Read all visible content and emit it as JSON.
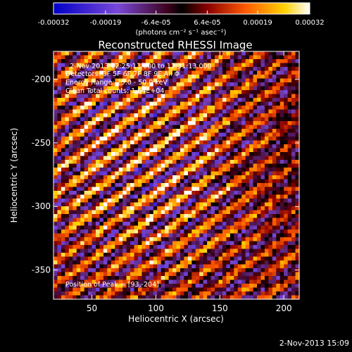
{
  "chart_data": {
    "type": "heatmap",
    "title": "Reconstructed RHESSI Image",
    "xlabel": "Heliocentric X (arcsec)",
    "ylabel": "Heliocentric Y (arcsec)",
    "xlim": [
      20,
      212
    ],
    "ylim": [
      -373,
      -178
    ],
    "x_ticks": [
      50,
      100,
      150,
      200
    ],
    "y_ticks": [
      -200,
      -250,
      -300,
      -350
    ],
    "colorbar": {
      "min": -0.00032,
      "max": 0.00032,
      "tick_values": [
        -0.00032,
        -0.00019,
        -6.4e-05,
        6.4e-05,
        0.00019,
        0.00032
      ],
      "tick_labels": [
        "-0.00032",
        "-0.00019",
        "-6.4e-05",
        "6.4e-05",
        "0.00019",
        "0.00032"
      ],
      "units_label": "(photons cm⁻² s⁻¹ asec⁻²)"
    },
    "annotations": [
      "2-Nov-2013 12:25:13.000 to 12:31:13.000",
      "Detectors: 3F 5F 6F 7F 8F 9F  All Φ",
      "Energy Range: 25.0 - 50.0 keV",
      "Clean    Total counts: 1.64E+04"
    ],
    "peak_label": "Position of Peak = [93,-204]",
    "grid": false
  },
  "footer": {
    "timestamp": "2-Nov-2013 15:09"
  },
  "colors": {
    "background": "#000000",
    "text": "#ffffff"
  }
}
